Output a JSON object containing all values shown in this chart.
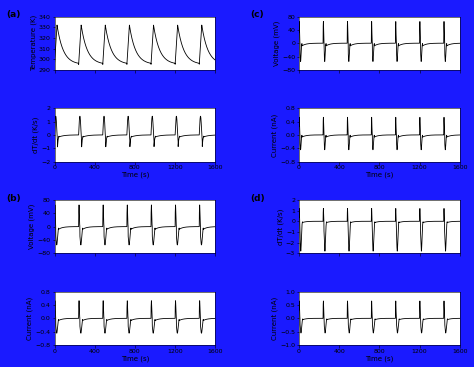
{
  "bg_color": "#1a1aff",
  "panel_bg": "#ffffff",
  "line_color": "#000000",
  "line_width": 0.6,
  "xlim": [
    0,
    1600
  ],
  "xticks": [
    0,
    400,
    800,
    1200,
    1600
  ],
  "xlabel": "Time (s)",
  "panels": {
    "a_temp": {
      "ylabel": "Temperature (K)",
      "ylim": [
        290,
        340
      ],
      "yticks": [
        290,
        300,
        310,
        320,
        330,
        340
      ]
    },
    "a_dTdt": {
      "ylabel": "dT/dt (K/s)",
      "ylim": [
        -2,
        2
      ],
      "yticks": [
        -2,
        -1,
        0,
        1,
        2
      ]
    },
    "b_volt": {
      "ylabel": "Voltage (mV)",
      "ylim": [
        -80,
        80
      ],
      "yticks": [
        -80,
        -40,
        0,
        40,
        80
      ]
    },
    "b_curr": {
      "ylabel": "Current (nA)",
      "ylim": [
        -0.8,
        0.8
      ],
      "yticks": [
        -0.8,
        -0.4,
        0,
        0.4,
        0.8
      ]
    },
    "c_volt": {
      "ylabel": "Voltage (mV)",
      "ylim": [
        -80,
        80
      ],
      "yticks": [
        -80,
        -40,
        0,
        40,
        80
      ]
    },
    "c_curr": {
      "ylabel": "Current (nA)",
      "ylim": [
        -0.8,
        0.8
      ],
      "yticks": [
        -0.8,
        -0.4,
        0,
        0.4,
        0.8
      ]
    },
    "d_dTdt": {
      "ylabel": "dT/dt (K/s)",
      "ylim": [
        -3,
        2
      ],
      "yticks": [
        -3,
        -2,
        -1,
        0,
        1,
        2
      ]
    },
    "d_curr": {
      "ylabel": "Current (nA)",
      "ylim": [
        -1.0,
        1.0
      ],
      "yticks": [
        -1.0,
        -0.5,
        0,
        0.5,
        1.0
      ]
    }
  },
  "font_size": 5.0,
  "label_font_size": 6.5,
  "tick_font_size": 4.5
}
